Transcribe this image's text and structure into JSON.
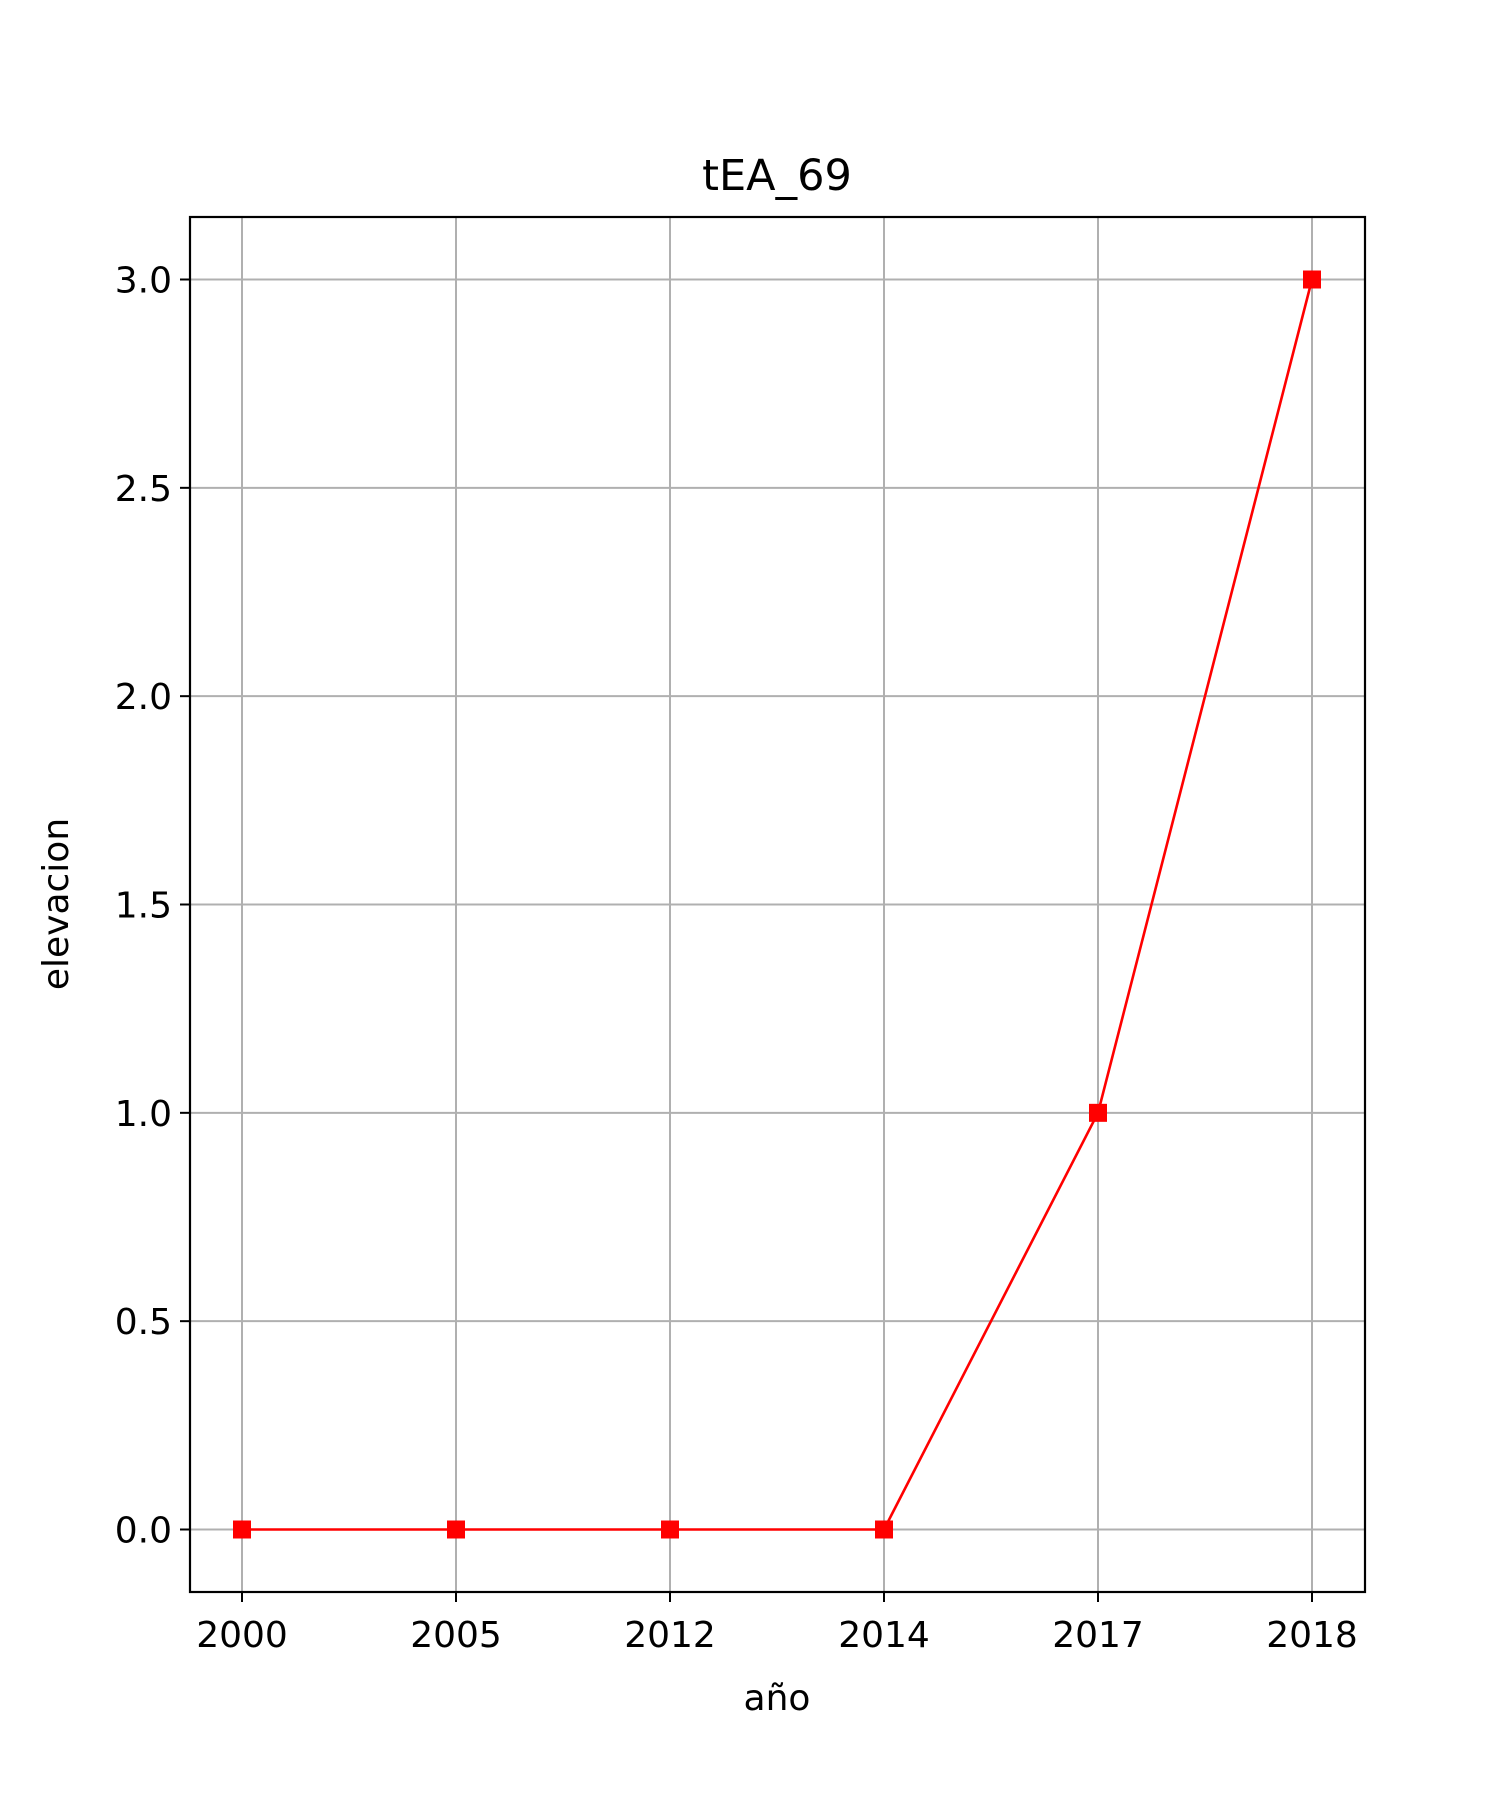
{
  "chart_data": {
    "type": "line",
    "title": "tEA_69",
    "xlabel": "año",
    "ylabel": "elevacion",
    "categories": [
      "2000",
      "2005",
      "2012",
      "2014",
      "2017",
      "2018"
    ],
    "values": [
      0,
      0,
      0,
      0,
      1,
      3
    ],
    "ylim": [
      -0.15,
      3.15
    ],
    "yticks": [
      "0.0",
      "0.5",
      "1.0",
      "1.5",
      "2.0",
      "2.5",
      "3.0"
    ],
    "grid": true,
    "line_color": "#ff0000",
    "marker": "square"
  }
}
